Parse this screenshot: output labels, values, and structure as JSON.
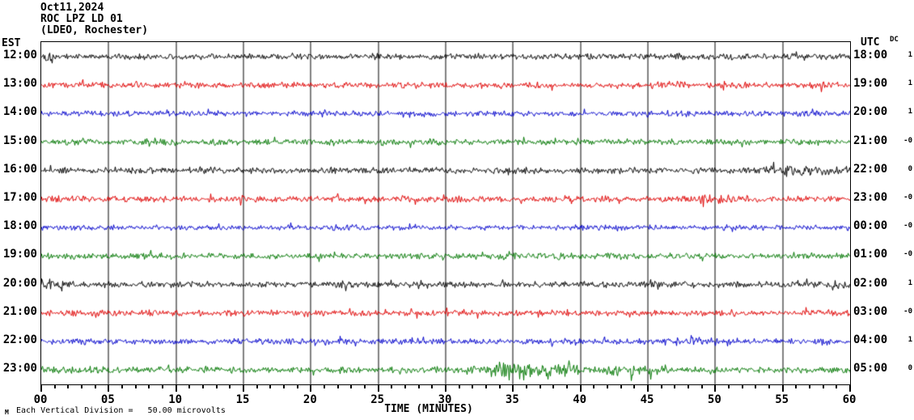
{
  "title": {
    "date": "Oct11,2024",
    "station": "ROC LPZ LD 01",
    "network": "(LDEO, Rochester)"
  },
  "axes": {
    "left_header": "EST",
    "right_header": "UTC",
    "dc_header": "DC",
    "x_label": "TIME (MINUTES)",
    "x_ticks": [
      "00",
      "05",
      "10",
      "15",
      "20",
      "25",
      "30",
      "35",
      "40",
      "45",
      "50",
      "55",
      "60"
    ],
    "minutes_per_major": 5,
    "minutes_total": 60,
    "scale_note": "Each Vertical Division =   50.00 microvolts",
    "scale_mark": "M"
  },
  "colors": {
    "background": "#ffffff",
    "border": "#000000",
    "grid": "#808080",
    "tick": "#000000",
    "trace_cycle": [
      "#000000",
      "#e00000",
      "#0000cc",
      "#007700"
    ]
  },
  "chart_data": {
    "type": "line",
    "kind": "seismogram-helicorder",
    "title": "ROC LPZ LD 01 (LDEO, Rochester) Oct11,2024",
    "xlabel": "TIME (MINUTES)",
    "x_range_minutes": [
      0,
      60
    ],
    "grid": "vertical-every-5-min",
    "vertical_division_microvolts": 50.0,
    "rows": [
      {
        "est": "12:00",
        "utc": "18:00",
        "dc": "1",
        "color": "#000000",
        "seed": 101,
        "base_amp": 4.2,
        "bursts": [
          [
            0,
            1.2,
            1.6
          ],
          [
            24,
            27,
            1.25
          ],
          [
            54,
            58,
            1.3
          ]
        ]
      },
      {
        "est": "13:00",
        "utc": "19:00",
        "dc": "1",
        "color": "#e00000",
        "seed": 202,
        "base_amp": 4.2,
        "bursts": [
          [
            0.2,
            1,
            1.5
          ],
          [
            18,
            21,
            1.35
          ],
          [
            44,
            49,
            1.3
          ],
          [
            56,
            60,
            1.35
          ]
        ]
      },
      {
        "est": "14:00",
        "utc": "20:00",
        "dc": "1",
        "color": "#0000cc",
        "seed": 303,
        "base_amp": 3.9,
        "bursts": [
          [
            5,
            7,
            1.4
          ],
          [
            33,
            35,
            1.3
          ],
          [
            47,
            49,
            1.35
          ]
        ]
      },
      {
        "est": "15:00",
        "utc": "21:00",
        "dc": "-0",
        "color": "#007700",
        "seed": 404,
        "base_amp": 4.2,
        "bursts": [
          [
            7,
            9.5,
            1.45
          ],
          [
            28,
            31,
            1.25
          ],
          [
            48,
            50.5,
            1.4
          ]
        ]
      },
      {
        "est": "16:00",
        "utc": "22:00",
        "dc": "0",
        "color": "#000000",
        "seed": 505,
        "base_amp": 4.4,
        "bursts": [
          [
            11,
            13.5,
            1.5
          ],
          [
            34,
            36,
            1.3
          ],
          [
            52,
            59.5,
            1.75
          ]
        ]
      },
      {
        "est": "17:00",
        "utc": "23:00",
        "dc": "-0",
        "color": "#e00000",
        "seed": 606,
        "base_amp": 4.4,
        "bursts": [
          [
            0,
            2,
            1.5
          ],
          [
            14,
            16,
            1.3
          ],
          [
            29,
            33,
            1.4
          ],
          [
            47,
            53,
            1.65
          ]
        ]
      },
      {
        "est": "18:00",
        "utc": "00:00",
        "dc": "-0",
        "color": "#0000cc",
        "seed": 707,
        "base_amp": 3.8,
        "bursts": [
          [
            21,
            24,
            1.3
          ],
          [
            42,
            44,
            1.25
          ],
          [
            50,
            52,
            1.3
          ]
        ]
      },
      {
        "est": "19:00",
        "utc": "01:00",
        "dc": "-0",
        "color": "#007700",
        "seed": 808,
        "base_amp": 4.2,
        "bursts": [
          [
            9,
            11,
            1.3
          ],
          [
            33,
            36,
            1.4
          ],
          [
            41,
            45,
            1.45
          ],
          [
            55,
            57,
            1.3
          ]
        ]
      },
      {
        "est": "20:00",
        "utc": "02:00",
        "dc": "1",
        "color": "#000000",
        "seed": 909,
        "base_amp": 4.4,
        "bursts": [
          [
            0,
            1.6,
            1.9
          ],
          [
            21,
            23.5,
            1.4
          ],
          [
            44,
            46,
            1.35
          ],
          [
            58,
            60,
            1.4
          ]
        ]
      },
      {
        "est": "21:00",
        "utc": "03:00",
        "dc": "-0",
        "color": "#e00000",
        "seed": 1010,
        "base_amp": 4.2,
        "bursts": [
          [
            13,
            15,
            1.35
          ],
          [
            33,
            35.5,
            1.3
          ],
          [
            50,
            52,
            1.3
          ]
        ]
      },
      {
        "est": "22:00",
        "utc": "04:00",
        "dc": "1",
        "color": "#0000cc",
        "seed": 1111,
        "base_amp": 4.1,
        "bursts": [
          [
            2,
            4,
            1.3
          ],
          [
            38,
            40,
            1.3
          ],
          [
            47,
            50,
            1.65
          ],
          [
            57,
            59,
            1.3
          ]
        ]
      },
      {
        "est": "23:00",
        "utc": "05:00",
        "dc": "0",
        "color": "#007700",
        "seed": 1212,
        "base_amp": 4.4,
        "bursts": [
          [
            30.5,
            33,
            2.0
          ],
          [
            33,
            36.5,
            3.6
          ],
          [
            36.5,
            40,
            2.7
          ],
          [
            40,
            47,
            1.8
          ],
          [
            47,
            51,
            1.35
          ]
        ],
        "note": "largest event of the day, minutes 31-47"
      }
    ]
  },
  "layout_hints": {
    "row_count": 12,
    "events": [
      {
        "row_est": "23:00",
        "minutes": [
          31,
          47
        ],
        "description": "high-amplitude seismic burst"
      },
      {
        "row_est": "16:00",
        "minutes": [
          52,
          60
        ],
        "description": "elevated noise"
      },
      {
        "row_est": "17:00",
        "minutes": [
          47,
          53
        ],
        "description": "elevated noise"
      },
      {
        "row_est": "22:00",
        "minutes": [
          47,
          50
        ],
        "description": "elevated noise"
      },
      {
        "row_est": "20:00",
        "minutes": [
          0,
          2
        ],
        "description": "elevated noise"
      }
    ]
  }
}
